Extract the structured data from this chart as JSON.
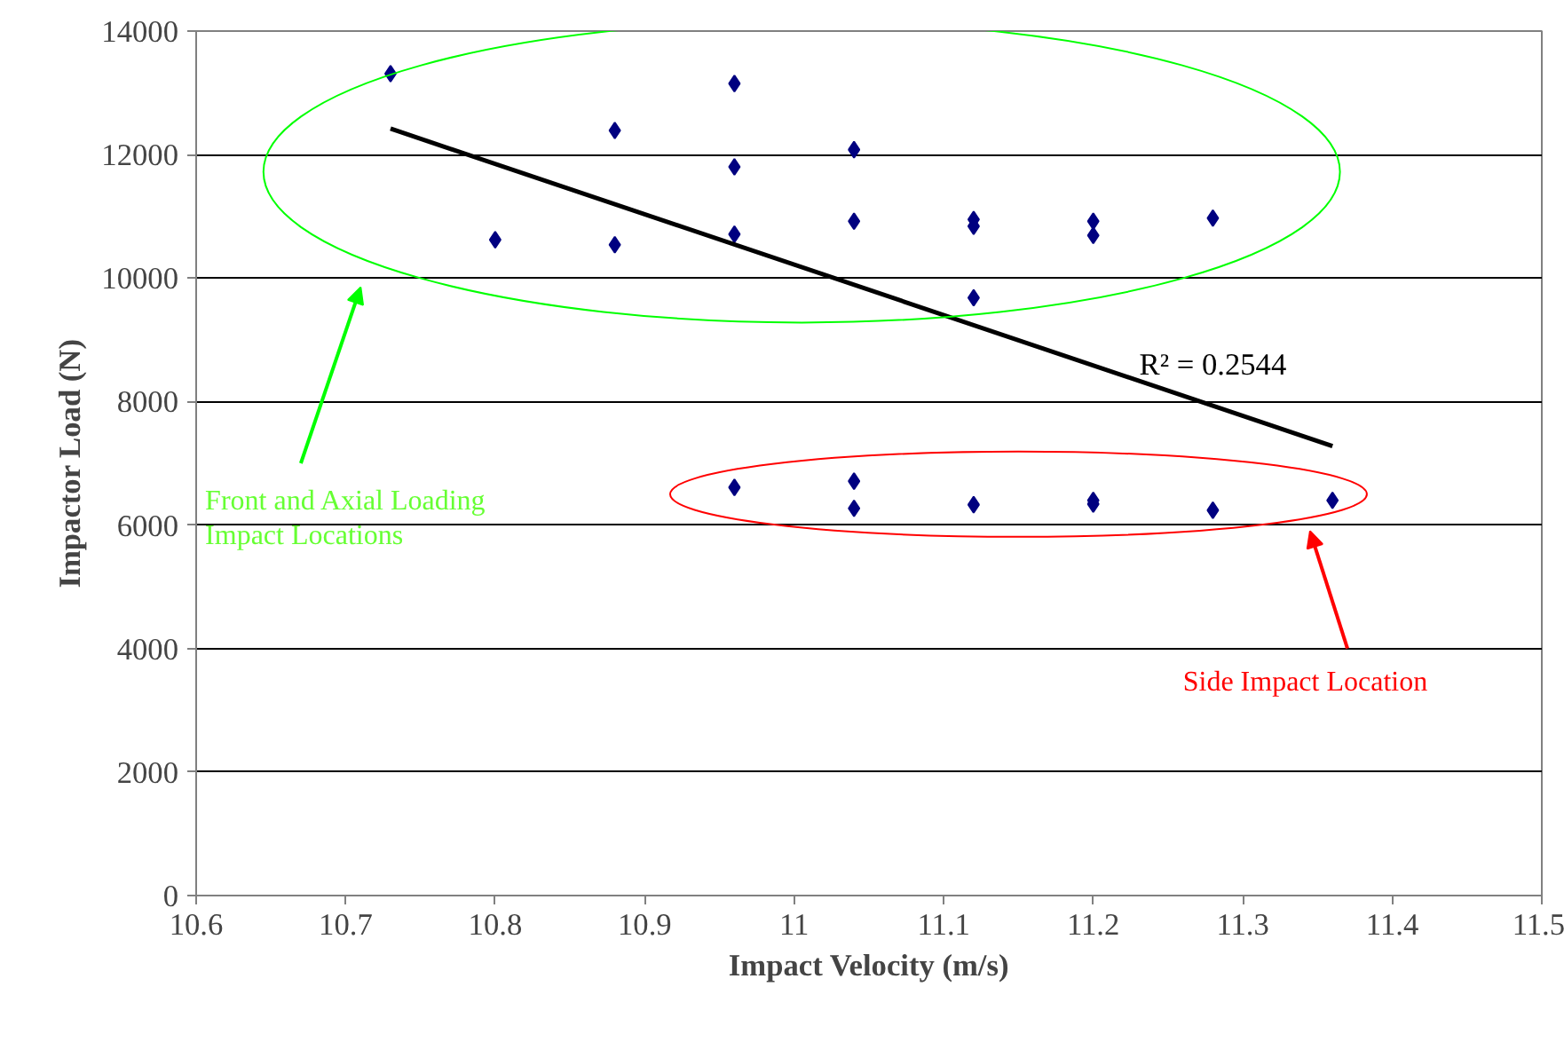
{
  "chart_data": {
    "type": "scatter",
    "xlabel": "Impact Velocity (m/s)",
    "ylabel": "Impactor Load (N)",
    "series": [
      {
        "color": "#000080",
        "marker": "diamond",
        "x": [
          10.73,
          10.8,
          10.88,
          10.88,
          10.96,
          10.96,
          10.96,
          10.96,
          11.04,
          11.04,
          11.04,
          11.04,
          11.12,
          11.12,
          11.12,
          11.12,
          11.2,
          11.2,
          11.2,
          11.2,
          11.28,
          11.28,
          11.36
        ],
        "values": [
          13310,
          10620,
          12390,
          10540,
          13150,
          11800,
          10710,
          6610,
          12080,
          10920,
          6710,
          6270,
          10950,
          10840,
          9680,
          6330,
          10920,
          10690,
          6400,
          6340,
          10970,
          6240,
          6400
        ]
      },
      {
        "type": "line",
        "color": "#000000",
        "x": [
          10.73,
          11.36
        ],
        "values": [
          12420,
          7280
        ]
      }
    ],
    "xlim": [
      10.6,
      11.5
    ],
    "xticks": [
      10.6,
      10.7,
      10.8,
      10.9,
      11,
      11.1,
      11.2,
      11.3,
      11.4,
      11.5
    ],
    "ylim": [
      0,
      14000
    ],
    "yticks": [
      0,
      2000,
      4000,
      6000,
      8000,
      10000,
      12000,
      14000
    ],
    "grid": "y",
    "annotations": [
      "R² = 0.2544",
      "Front and Axial Loading Impact Locations",
      "Side Impact Location"
    ]
  }
}
